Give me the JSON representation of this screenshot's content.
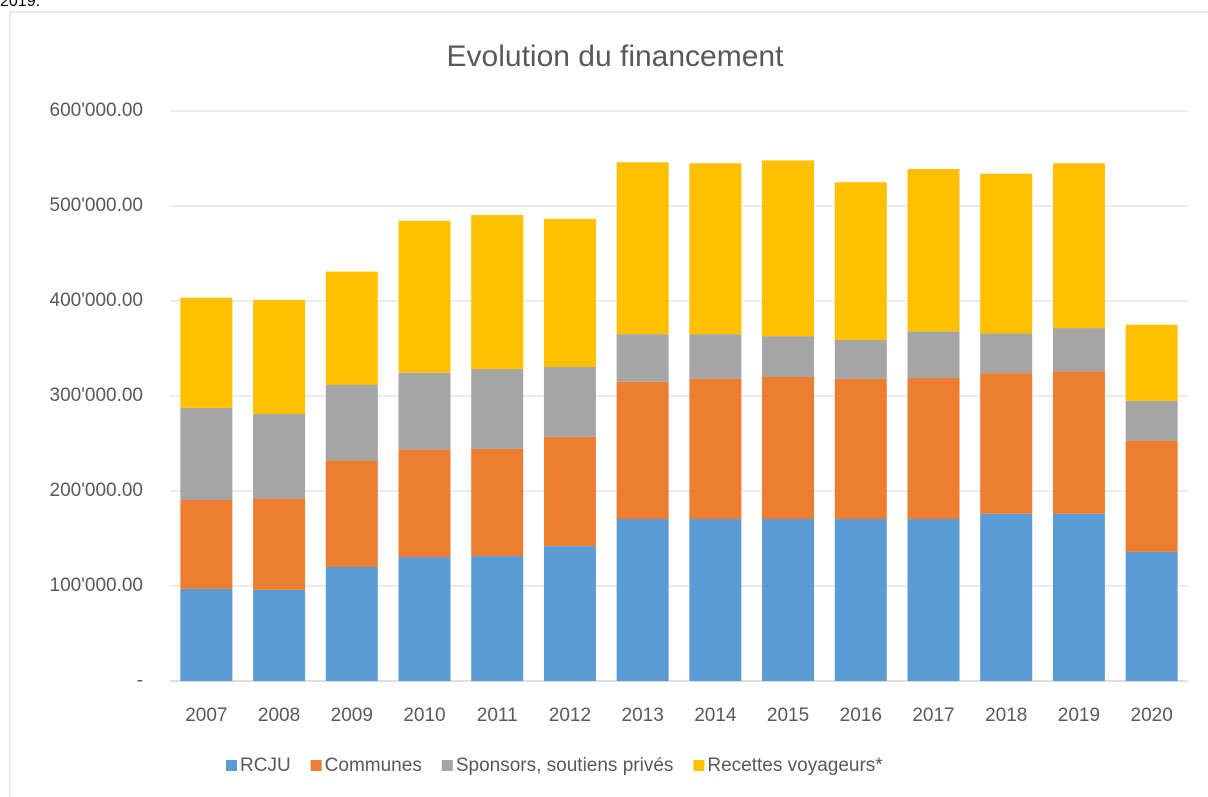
{
  "header_text": "2019.",
  "chart_data": {
    "type": "stacked_bar",
    "title": "Evolution du financement",
    "categories": [
      "2007",
      "2008",
      "2009",
      "2010",
      "2011",
      "2012",
      "2013",
      "2014",
      "2015",
      "2016",
      "2017",
      "2018",
      "2019",
      "2020"
    ],
    "series": [
      {
        "name": "RCJU",
        "color": "#5b9bd5",
        "values": [
          97000,
          96000,
          120000,
          130500,
          131500,
          142000,
          170500,
          170500,
          170500,
          170500,
          170500,
          176000,
          176000,
          136000
        ]
      },
      {
        "name": "Communes",
        "color": "#ed7d31",
        "values": [
          93500,
          96000,
          112000,
          113000,
          113000,
          115000,
          144500,
          147500,
          149500,
          147500,
          148500,
          148000,
          150000,
          117000
        ]
      },
      {
        "name": "Sponsors, soutiens privés",
        "color": "#a5a5a5",
        "values": [
          97000,
          89000,
          80000,
          81000,
          84000,
          73500,
          50000,
          47000,
          43000,
          41000,
          49000,
          42000,
          45500,
          42000
        ]
      },
      {
        "name": "Recettes voyageurs*",
        "color": "#ffc000",
        "values": [
          116000,
          120000,
          119000,
          160000,
          162000,
          156000,
          181000,
          180000,
          185000,
          166000,
          171000,
          168000,
          173500,
          80000
        ]
      }
    ],
    "ylim": [
      0,
      600000
    ],
    "yticks": [
      {
        "value": 0,
        "label": "-"
      },
      {
        "value": 100000,
        "label": "100'000.00"
      },
      {
        "value": 200000,
        "label": "200'000.00"
      },
      {
        "value": 300000,
        "label": "300'000.00"
      },
      {
        "value": 400000,
        "label": "400'000.00"
      },
      {
        "value": 500000,
        "label": "500'000.00"
      },
      {
        "value": 600000,
        "label": "600'000.00"
      }
    ],
    "grid": true,
    "legend": "bottom"
  }
}
